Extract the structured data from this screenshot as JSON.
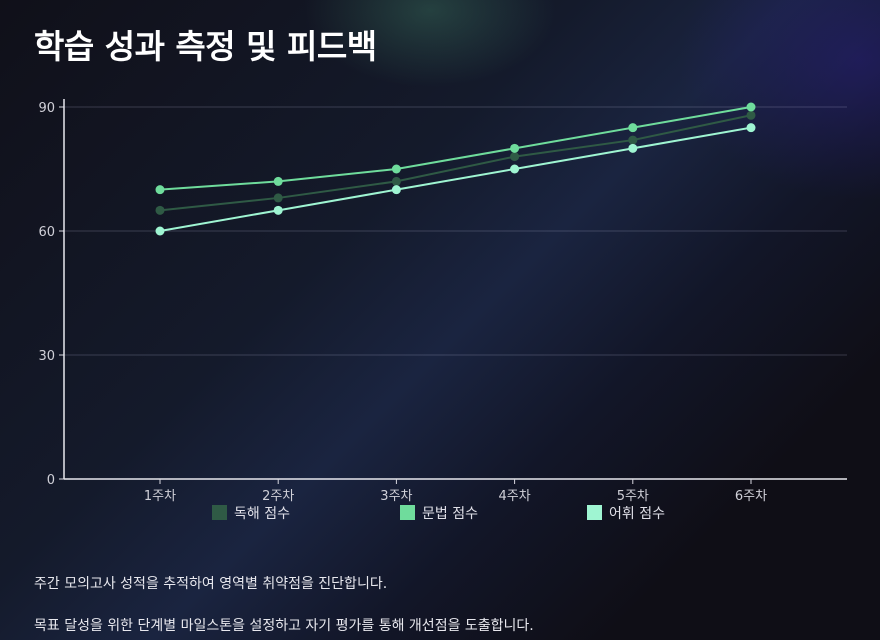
{
  "title": "학습 성과 측정 및 피드백",
  "chart_data": {
    "type": "line",
    "categories": [
      "1주차",
      "2주차",
      "3주차",
      "4주차",
      "5주차",
      "6주차"
    ],
    "series": [
      {
        "name": "독해 점수",
        "color": "#2f5a45",
        "values": [
          65,
          68,
          72,
          78,
          82,
          88
        ]
      },
      {
        "name": "문법 점수",
        "color": "#6fdc9c",
        "values": [
          70,
          72,
          75,
          80,
          85,
          90
        ]
      },
      {
        "name": "어휘 점수",
        "color": "#9ff5d2",
        "values": [
          60,
          65,
          70,
          75,
          80,
          85
        ]
      }
    ],
    "yticks": [
      0,
      30,
      60,
      90
    ],
    "ylim": [
      0,
      90
    ],
    "grid": true,
    "legend_position": "bottom"
  },
  "descriptions": [
    "주간 모의고사 성적을 추적하여 영역별 취약점을 진단합니다.",
    "목표 달성을 위한 단계별 마일스톤을 설정하고 자기 평가를 통해 개선점을 도출합니다."
  ]
}
